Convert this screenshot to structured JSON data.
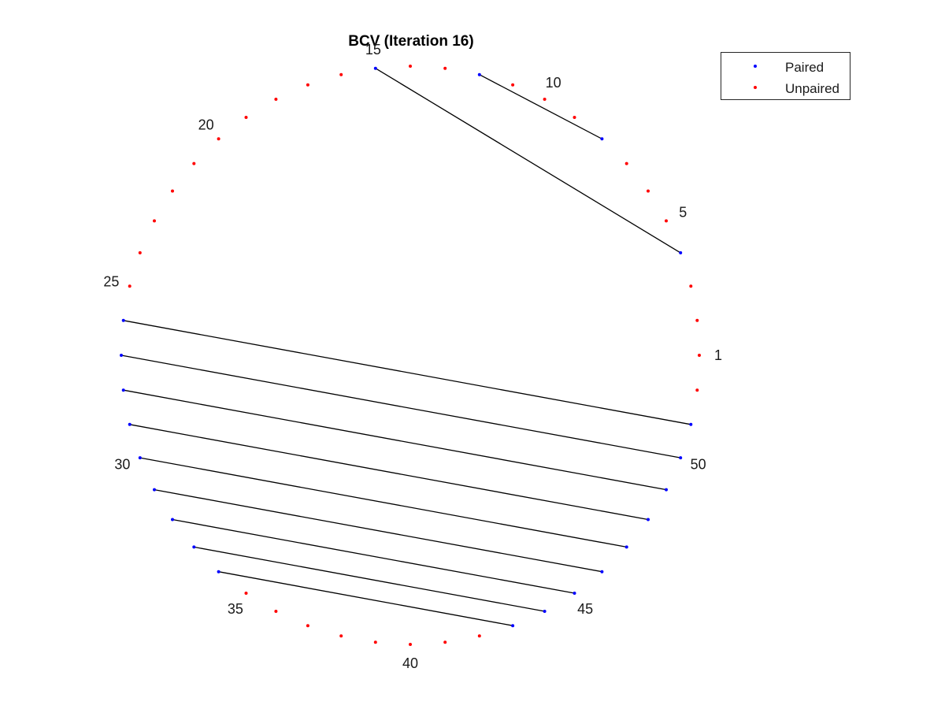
{
  "chart_data": {
    "type": "scatter",
    "title": "BCV (Iteration 16)",
    "n_nodes": 52,
    "start_index": 1,
    "node_labels": [
      "1",
      "5",
      "10",
      "15",
      "20",
      "25",
      "30",
      "35",
      "40",
      "45",
      "50"
    ],
    "legend": {
      "placement": "top-right",
      "entries": [
        {
          "name": "Paired",
          "color": "#0000ff"
        },
        {
          "name": "Unpaired",
          "color": "#ff0000"
        }
      ]
    },
    "paired_color": "#0000ff",
    "unpaired_color": "#ff0000",
    "line_color": "#000000",
    "pairs": [
      [
        4,
        15
      ],
      [
        8,
        12
      ],
      [
        26,
        51
      ],
      [
        27,
        50
      ],
      [
        28,
        49
      ],
      [
        29,
        48
      ],
      [
        30,
        47
      ],
      [
        31,
        46
      ],
      [
        32,
        45
      ],
      [
        33,
        44
      ],
      [
        34,
        43
      ]
    ],
    "grid": false
  }
}
